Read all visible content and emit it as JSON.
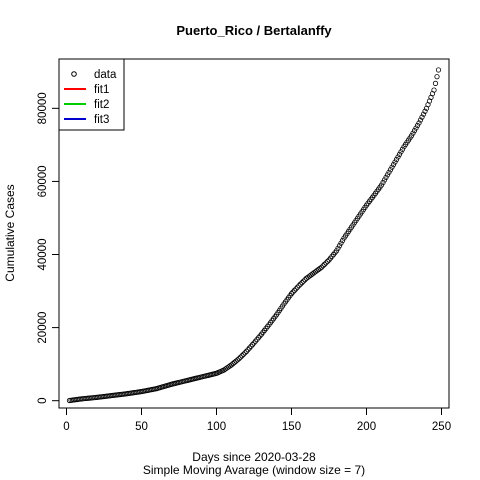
{
  "chart_data": {
    "type": "scatter",
    "title": "Puerto_Rico / Bertalanffy",
    "xlabel": "Days since 2020-03-28",
    "subtitle": "Simple Moving Avarage (window size = 7)",
    "ylabel": "Cumulative Cases",
    "xlim": [
      -5,
      255
    ],
    "ylim": [
      -2000,
      93500
    ],
    "xticks": [
      "0",
      "50",
      "100",
      "150",
      "200",
      "250"
    ],
    "yticks": [
      "0",
      "20000",
      "40000",
      "60000",
      "80000"
    ],
    "grid": false,
    "legend": {
      "placement": "top-left",
      "entries": [
        {
          "label": "data",
          "marker": "open-circle",
          "color": "#000000"
        },
        {
          "label": "fit1",
          "marker": "line",
          "color": "#ff0000"
        },
        {
          "label": "fit2",
          "marker": "line",
          "color": "#00cc00"
        },
        {
          "label": "fit3",
          "marker": "line",
          "color": "#0000cc"
        }
      ]
    },
    "series": [
      {
        "name": "data",
        "x": [
          2,
          10,
          20,
          30,
          40,
          50,
          60,
          70,
          80,
          90,
          100,
          105,
          110,
          115,
          120,
          125,
          130,
          135,
          140,
          145,
          150,
          155,
          160,
          165,
          170,
          175,
          180,
          185,
          190,
          195,
          200,
          205,
          210,
          215,
          220,
          225,
          230,
          235,
          240,
          245,
          248
        ],
        "y": [
          50,
          500,
          900,
          1400,
          1900,
          2500,
          3300,
          4500,
          5500,
          6500,
          7500,
          8400,
          9800,
          11500,
          13500,
          15800,
          18200,
          20800,
          23500,
          26500,
          29300,
          31500,
          33500,
          35000,
          36500,
          38500,
          41000,
          44500,
          47500,
          50500,
          53500,
          56200,
          59000,
          62500,
          66000,
          69500,
          72500,
          76000,
          80000,
          85000,
          90500
        ]
      }
    ]
  }
}
